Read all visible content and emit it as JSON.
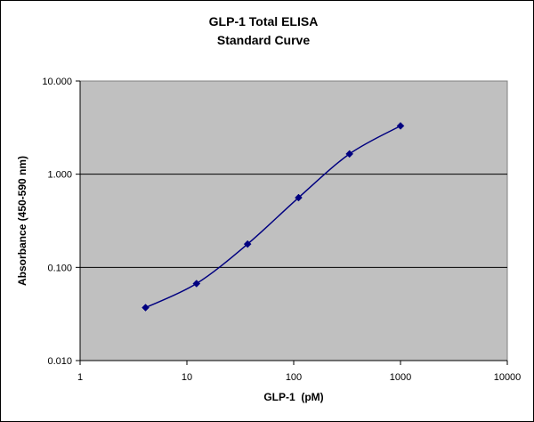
{
  "chart_data": {
    "type": "line",
    "title": [
      "GLP-1 Total ELISA",
      "Standard Curve"
    ],
    "xlabel": "GLP-1  (pM)",
    "ylabel": "Absorbance (450-590 nm)",
    "x_scale": "log",
    "y_scale": "log",
    "xlim": [
      1,
      10000
    ],
    "ylim": [
      0.01,
      10
    ],
    "x_ticks": [
      1,
      10,
      100,
      1000,
      10000
    ],
    "x_tick_labels": [
      "1",
      "10",
      "100",
      "1000",
      "10000"
    ],
    "y_ticks": [
      0.01,
      0.1,
      1,
      10
    ],
    "y_tick_labels": [
      "0.010",
      "0.100",
      "1.000",
      "10.000"
    ],
    "grid": "horizontal major",
    "legend": "none",
    "series": [
      {
        "x": [
          4.1,
          12.3,
          37,
          111,
          333,
          1000
        ],
        "y": [
          0.037,
          0.067,
          0.178,
          0.56,
          1.65,
          3.3
        ]
      }
    ],
    "colors": {
      "plot_background": "#c0c0c0",
      "series_line": "#000080",
      "marker": "#000080",
      "gridline": "#000000"
    }
  }
}
